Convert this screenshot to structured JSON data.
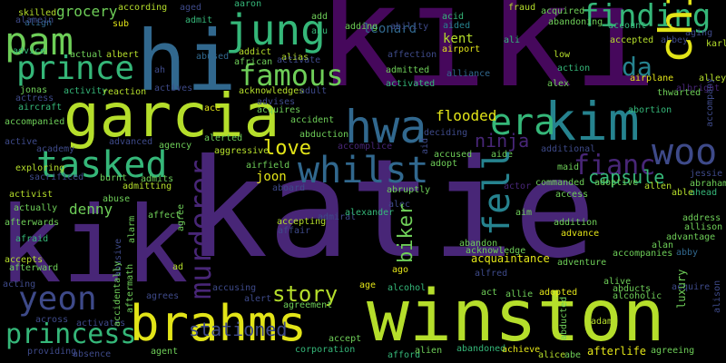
{
  "palette": {
    "background": "#000000",
    "dark_purple": "#46085c",
    "purple": "#482677",
    "indigo": "#3e4a89",
    "blue": "#31688e",
    "teal": "#26838f",
    "sea_green": "#1f9d8a",
    "green": "#35b779",
    "lime": "#6ece58",
    "light_lime": "#b5de2b",
    "yellow": "#fde725"
  },
  "words": [
    {
      "text": "kiki",
      "key": "kiki"
    },
    {
      "text": "katie",
      "key": "katie"
    },
    {
      "text": "kik",
      "key": "kik"
    },
    {
      "text": "winston",
      "key": "winston"
    },
    {
      "text": "brahms",
      "key": "brahms"
    },
    {
      "text": "garcia",
      "key": "garcia"
    },
    {
      "text": "hi",
      "key": "hi"
    },
    {
      "text": "chi",
      "key": "chi"
    },
    {
      "text": "kim",
      "key": "kim"
    },
    {
      "text": "hwa",
      "key": "hwa"
    },
    {
      "text": "jung",
      "key": "jung"
    },
    {
      "text": "pam",
      "key": "pam"
    },
    {
      "text": "prince",
      "key": "prince"
    },
    {
      "text": "famous",
      "key": "famous"
    },
    {
      "text": "tasked",
      "key": "tasked"
    },
    {
      "text": "whilst",
      "key": "whilst"
    },
    {
      "text": "murderer",
      "key": "murderer"
    },
    {
      "text": "yeon",
      "key": "yeon"
    },
    {
      "text": "princess",
      "key": "princess"
    },
    {
      "text": "finding",
      "key": "finding"
    },
    {
      "text": "woo",
      "key": "woo"
    },
    {
      "text": "era",
      "key": "era"
    },
    {
      "text": "fell",
      "key": "fell"
    },
    {
      "text": "fianc",
      "key": "fianc"
    },
    {
      "text": "da",
      "key": "da"
    },
    {
      "text": "story",
      "key": "story"
    },
    {
      "text": "love",
      "key": "love"
    },
    {
      "text": "ninja",
      "key": "ninja"
    },
    {
      "text": "biker",
      "key": "biker"
    },
    {
      "text": "capsule",
      "key": "capsule"
    },
    {
      "text": "flooded",
      "key": "flooded"
    },
    {
      "text": "stationed",
      "key": "stationed"
    },
    {
      "text": "denny",
      "key": "denny"
    },
    {
      "text": "joon",
      "key": "joon"
    },
    {
      "text": "grocery",
      "key": "grocery"
    },
    {
      "text": "leonard",
      "key": "leonard"
    },
    {
      "text": "kent",
      "key": "kent"
    },
    {
      "text": "luxury",
      "key": "luxury"
    },
    {
      "text": "skilled",
      "key": "skilled"
    },
    {
      "text": "according",
      "key": "according"
    },
    {
      "text": "aged",
      "key": "aged"
    },
    {
      "text": "aaron",
      "key": "aaron"
    },
    {
      "text": "add",
      "key": "add"
    },
    {
      "text": "acid",
      "key": "acid"
    },
    {
      "text": "fraud",
      "key": "fraud"
    },
    {
      "text": "acquired",
      "key": "acquired"
    },
    {
      "text": "align",
      "key": "align"
    },
    {
      "text": "alamein",
      "key": "alamein"
    },
    {
      "text": "sub",
      "key": "sub"
    },
    {
      "text": "admit",
      "key": "admit"
    },
    {
      "text": "abu",
      "key": "abu"
    },
    {
      "text": "adding",
      "key": "adding"
    },
    {
      "text": "ability",
      "key": "ability"
    },
    {
      "text": "aided",
      "key": "aided"
    },
    {
      "text": "abandoning",
      "key": "abandoning"
    },
    {
      "text": "account",
      "key": "account"
    },
    {
      "text": "aging",
      "key": "aging"
    },
    {
      "text": "airport",
      "key": "airport"
    },
    {
      "text": "ali",
      "key": "ali"
    },
    {
      "text": "accepted",
      "key": "accepted"
    },
    {
      "text": "abbey",
      "key": "abbey"
    },
    {
      "text": "karl",
      "key": "karl"
    },
    {
      "text": "advice",
      "key": "advice"
    },
    {
      "text": "actual",
      "key": "actual"
    },
    {
      "text": "albert",
      "key": "albert"
    },
    {
      "text": "abused",
      "key": "abused"
    },
    {
      "text": "addict",
      "key": "addict"
    },
    {
      "text": "african",
      "key": "african"
    },
    {
      "text": "alias",
      "key": "alias"
    },
    {
      "text": "activate",
      "key": "activate"
    },
    {
      "text": "affection",
      "key": "affection"
    },
    {
      "text": "admitted",
      "key": "admitted"
    },
    {
      "text": "alliance",
      "key": "alliance"
    },
    {
      "text": "low",
      "key": "low"
    },
    {
      "text": "action",
      "key": "action"
    },
    {
      "text": "airplane",
      "key": "airplane"
    },
    {
      "text": "alley",
      "key": "alley"
    },
    {
      "text": "alex",
      "key": "alex"
    },
    {
      "text": "albright",
      "key": "albright"
    },
    {
      "text": "accompany",
      "key": "accompany"
    },
    {
      "text": "ah",
      "key": "ah"
    },
    {
      "text": "jonas",
      "key": "jonas"
    },
    {
      "text": "actress",
      "key": "actress"
    },
    {
      "text": "activity",
      "key": "activity"
    },
    {
      "text": "reaction",
      "key": "reaction"
    },
    {
      "text": "actives",
      "key": "actives"
    },
    {
      "text": "acknowledges",
      "key": "acknowledges"
    },
    {
      "text": "advises",
      "key": "advises"
    },
    {
      "text": "adult",
      "key": "adult"
    },
    {
      "text": "activated",
      "key": "activated"
    },
    {
      "text": "thwarted",
      "key": "thwarted"
    },
    {
      "text": "aircraft",
      "key": "aircraft"
    },
    {
      "text": "acquires",
      "key": "acquires"
    },
    {
      "text": "ace",
      "key": "ace"
    },
    {
      "text": "accident",
      "key": "accident"
    },
    {
      "text": "abortion",
      "key": "abortion"
    },
    {
      "text": "accompanied",
      "key": "accompanied"
    },
    {
      "text": "abduction",
      "key": "abduction"
    },
    {
      "text": "deciding",
      "key": "deciding"
    },
    {
      "text": "additional",
      "key": "additional"
    },
    {
      "text": "active",
      "key": "active"
    },
    {
      "text": "academy",
      "key": "academy"
    },
    {
      "text": "advanced",
      "key": "advanced"
    },
    {
      "text": "agency",
      "key": "agency"
    },
    {
      "text": "alerted",
      "key": "alerted"
    },
    {
      "text": "accomplice",
      "key": "accomplice"
    },
    {
      "text": "aid",
      "key": "aid"
    },
    {
      "text": "maid",
      "key": "maid"
    },
    {
      "text": "aggressive",
      "key": "aggressive"
    },
    {
      "text": "accused",
      "key": "accused"
    },
    {
      "text": "aide",
      "key": "aide"
    },
    {
      "text": "jessie",
      "key": "jessie"
    },
    {
      "text": "abraham",
      "key": "abraham"
    },
    {
      "text": "ahead",
      "key": "ahead"
    },
    {
      "text": "exploring",
      "key": "exploring"
    },
    {
      "text": "sacrificed",
      "key": "sacrificed"
    },
    {
      "text": "burnt",
      "key": "burnt"
    },
    {
      "text": "admits",
      "key": "admits"
    },
    {
      "text": "airfield",
      "key": "airfield"
    },
    {
      "text": "adopt",
      "key": "adopt"
    },
    {
      "text": "abruptly",
      "key": "abruptly"
    },
    {
      "text": "commanded",
      "key": "commanded"
    },
    {
      "text": "adoptive",
      "key": "adoptive"
    },
    {
      "text": "allen",
      "key": "allen"
    },
    {
      "text": "able",
      "key": "able"
    },
    {
      "text": "activist",
      "key": "activist"
    },
    {
      "text": "admitting",
      "key": "admitting"
    },
    {
      "text": "aboard",
      "key": "aboard"
    },
    {
      "text": "actor",
      "key": "actor"
    },
    {
      "text": "access",
      "key": "access"
    },
    {
      "text": "actually",
      "key": "actually"
    },
    {
      "text": "abuse",
      "key": "abuse"
    },
    {
      "text": "agree",
      "key": "agree"
    },
    {
      "text": "alec",
      "key": "alec"
    },
    {
      "text": "afterwards",
      "key": "afterwards"
    },
    {
      "text": "alarm",
      "key": "alarm"
    },
    {
      "text": "affect",
      "key": "affect"
    },
    {
      "text": "admiral",
      "key": "admiral"
    },
    {
      "text": "aim",
      "key": "aim"
    },
    {
      "text": "address",
      "key": "address"
    },
    {
      "text": "allison",
      "key": "allison"
    },
    {
      "text": "addition",
      "key": "addition"
    },
    {
      "text": "affair",
      "key": "affair"
    },
    {
      "text": "accepting",
      "key": "accepting"
    },
    {
      "text": "alexander",
      "key": "alexander"
    },
    {
      "text": "abandon",
      "key": "abandon"
    },
    {
      "text": "acknowledge",
      "key": "acknowledge"
    },
    {
      "text": "advance",
      "key": "advance"
    },
    {
      "text": "advantage",
      "key": "advantage"
    },
    {
      "text": "afraid",
      "key": "afraid"
    },
    {
      "text": "abusive",
      "key": "abusive"
    },
    {
      "text": "acquaintance",
      "key": "acquaintance"
    },
    {
      "text": "alan",
      "key": "alan"
    },
    {
      "text": "accompanies",
      "key": "accompanies"
    },
    {
      "text": "abby",
      "key": "abby"
    },
    {
      "text": "accepts",
      "key": "accepts"
    },
    {
      "text": "afterward",
      "key": "afterward"
    },
    {
      "text": "accidentally",
      "key": "accidentally"
    },
    {
      "text": "aftermath",
      "key": "aftermath"
    },
    {
      "text": "ad",
      "key": "ad"
    },
    {
      "text": "ago",
      "key": "ago"
    },
    {
      "text": "alfred",
      "key": "alfred"
    },
    {
      "text": "adventure",
      "key": "adventure"
    },
    {
      "text": "acting",
      "key": "acting"
    },
    {
      "text": "accusing",
      "key": "accusing"
    },
    {
      "text": "age",
      "key": "age"
    },
    {
      "text": "alcohol",
      "key": "alcohol"
    },
    {
      "text": "alive",
      "key": "alive"
    },
    {
      "text": "abducts",
      "key": "abducts"
    },
    {
      "text": "acquire",
      "key": "acquire"
    },
    {
      "text": "alison",
      "key": "alison"
    },
    {
      "text": "agrees",
      "key": "agrees"
    },
    {
      "text": "alert",
      "key": "alert"
    },
    {
      "text": "agreement",
      "key": "agreement"
    },
    {
      "text": "act",
      "key": "act"
    },
    {
      "text": "allie",
      "key": "allie"
    },
    {
      "text": "adopted",
      "key": "adopted"
    },
    {
      "text": "alcoholic",
      "key": "alcoholic"
    },
    {
      "text": "across",
      "key": "across"
    },
    {
      "text": "activates",
      "key": "activates"
    },
    {
      "text": "accept",
      "key": "accept"
    },
    {
      "text": "adam",
      "key": "adam"
    },
    {
      "text": "abducted",
      "key": "abducted"
    },
    {
      "text": "providing",
      "key": "providing"
    },
    {
      "text": "absence",
      "key": "absence"
    },
    {
      "text": "agent",
      "key": "agent"
    },
    {
      "text": "corporation",
      "key": "corporation"
    },
    {
      "text": "afford",
      "key": "afford"
    },
    {
      "text": "alien",
      "key": "alien"
    },
    {
      "text": "abandoned",
      "key": "abandoned"
    },
    {
      "text": "achieve",
      "key": "achieve"
    },
    {
      "text": "alice",
      "key": "alice"
    },
    {
      "text": "abe",
      "key": "abe"
    },
    {
      "text": "afterlife",
      "key": "afterlife"
    },
    {
      "text": "agreeing",
      "key": "agreeing"
    }
  ]
}
